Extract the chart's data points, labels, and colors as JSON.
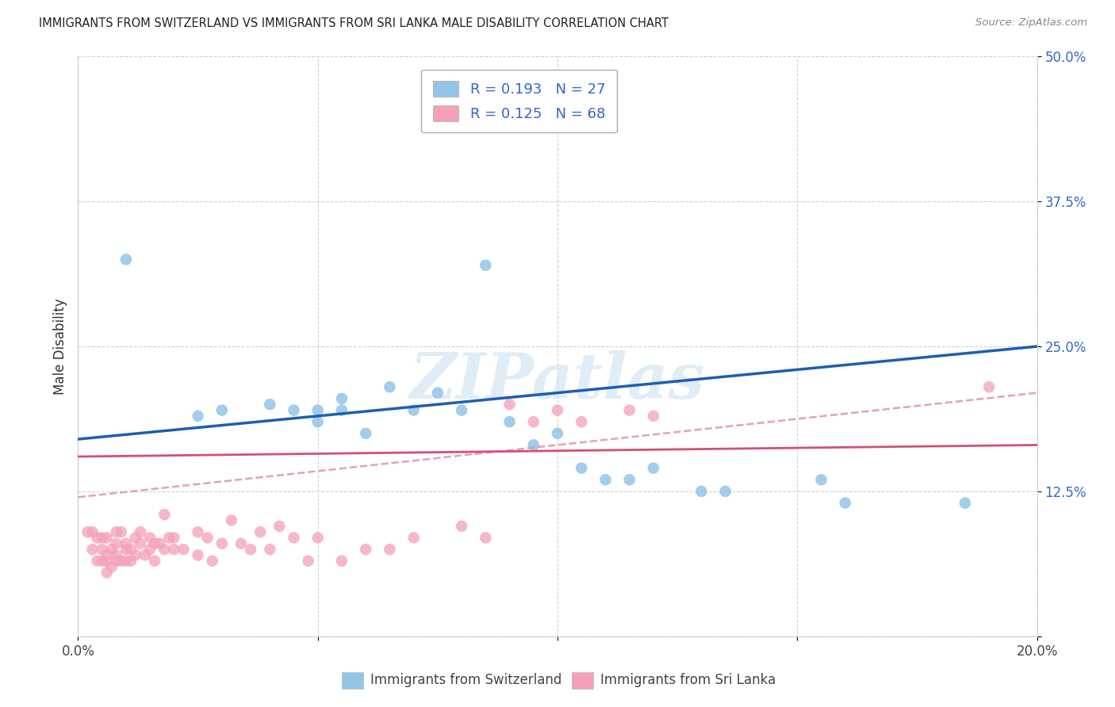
{
  "title": "IMMIGRANTS FROM SWITZERLAND VS IMMIGRANTS FROM SRI LANKA MALE DISABILITY CORRELATION CHART",
  "source": "Source: ZipAtlas.com",
  "ylabel": "Male Disability",
  "xlim": [
    0.0,
    0.2
  ],
  "ylim": [
    0.0,
    0.5
  ],
  "xticks": [
    0.0,
    0.05,
    0.1,
    0.15,
    0.2
  ],
  "yticks": [
    0.0,
    0.125,
    0.25,
    0.375,
    0.5
  ],
  "xticklabels": [
    "0.0%",
    "",
    "",
    "",
    "20.0%"
  ],
  "yticklabels": [
    "",
    "12.5%",
    "25.0%",
    "37.5%",
    "50.0%"
  ],
  "swiss_color": "#92c5e8",
  "srilanka_color": "#f4a0b8",
  "swiss_R": 0.193,
  "swiss_N": 27,
  "srilanka_R": 0.125,
  "srilanka_N": 68,
  "swiss_line_color": "#1a5fb4",
  "srilanka_solid_line_color": "#d45070",
  "srilanka_dashed_line_color": "#e090b0",
  "watermark": "ZIPatlas",
  "swiss_x": [
    0.01,
    0.025,
    0.03,
    0.04,
    0.045,
    0.05,
    0.05,
    0.055,
    0.055,
    0.06,
    0.065,
    0.07,
    0.075,
    0.08,
    0.085,
    0.09,
    0.095,
    0.1,
    0.105,
    0.11,
    0.115,
    0.12,
    0.13,
    0.135,
    0.155,
    0.16,
    0.185
  ],
  "swiss_y": [
    0.325,
    0.19,
    0.195,
    0.2,
    0.195,
    0.185,
    0.195,
    0.195,
    0.205,
    0.175,
    0.215,
    0.195,
    0.21,
    0.195,
    0.32,
    0.185,
    0.165,
    0.175,
    0.145,
    0.135,
    0.135,
    0.145,
    0.125,
    0.125,
    0.135,
    0.115,
    0.115
  ],
  "srilanka_x": [
    0.002,
    0.003,
    0.003,
    0.004,
    0.004,
    0.005,
    0.005,
    0.005,
    0.006,
    0.006,
    0.006,
    0.006,
    0.007,
    0.007,
    0.008,
    0.008,
    0.008,
    0.008,
    0.009,
    0.009,
    0.01,
    0.01,
    0.01,
    0.011,
    0.011,
    0.012,
    0.012,
    0.013,
    0.013,
    0.014,
    0.015,
    0.015,
    0.016,
    0.016,
    0.017,
    0.018,
    0.018,
    0.019,
    0.02,
    0.02,
    0.022,
    0.025,
    0.025,
    0.027,
    0.028,
    0.03,
    0.032,
    0.034,
    0.036,
    0.038,
    0.04,
    0.042,
    0.045,
    0.048,
    0.05,
    0.055,
    0.06,
    0.065,
    0.07,
    0.08,
    0.085,
    0.09,
    0.095,
    0.1,
    0.105,
    0.115,
    0.12,
    0.19
  ],
  "srilanka_y": [
    0.09,
    0.075,
    0.09,
    0.065,
    0.085,
    0.065,
    0.075,
    0.085,
    0.055,
    0.065,
    0.07,
    0.085,
    0.06,
    0.075,
    0.065,
    0.07,
    0.08,
    0.09,
    0.065,
    0.09,
    0.065,
    0.075,
    0.08,
    0.065,
    0.075,
    0.07,
    0.085,
    0.08,
    0.09,
    0.07,
    0.085,
    0.075,
    0.065,
    0.08,
    0.08,
    0.075,
    0.105,
    0.085,
    0.085,
    0.075,
    0.075,
    0.07,
    0.09,
    0.085,
    0.065,
    0.08,
    0.1,
    0.08,
    0.075,
    0.09,
    0.075,
    0.095,
    0.085,
    0.065,
    0.085,
    0.065,
    0.075,
    0.075,
    0.085,
    0.095,
    0.085,
    0.2,
    0.185,
    0.195,
    0.185,
    0.195,
    0.19,
    0.215
  ]
}
